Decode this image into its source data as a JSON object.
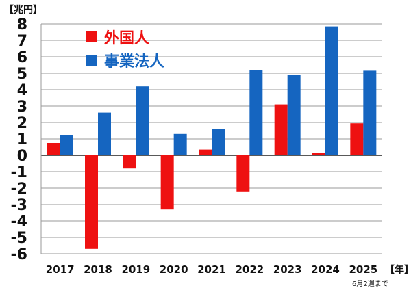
{
  "chart_data": {
    "type": "bar",
    "unit_label": "【兆円】",
    "x_unit_label": "【年】",
    "note": "6月2週まで",
    "categories": [
      "2017",
      "2018",
      "2019",
      "2020",
      "2021",
      "2022",
      "2023",
      "2024",
      "2025"
    ],
    "series": [
      {
        "name": "外国人",
        "color": "#ee1111",
        "values": [
          0.75,
          -5.7,
          -0.8,
          -3.3,
          0.35,
          -2.2,
          3.1,
          0.15,
          1.95
        ]
      },
      {
        "name": "事業法人",
        "color": "#1565c0",
        "values": [
          1.25,
          2.6,
          4.2,
          1.3,
          1.6,
          5.2,
          4.9,
          7.85,
          5.15
        ]
      }
    ],
    "ylim": [
      -6,
      8
    ],
    "y_ticks": [
      "8",
      "7",
      "6",
      "5",
      "4",
      "3",
      "2",
      "1",
      "0",
      "-1",
      "-2",
      "-3",
      "-4",
      "-5",
      "-6"
    ],
    "grid": true,
    "legend_position": "top-left"
  }
}
